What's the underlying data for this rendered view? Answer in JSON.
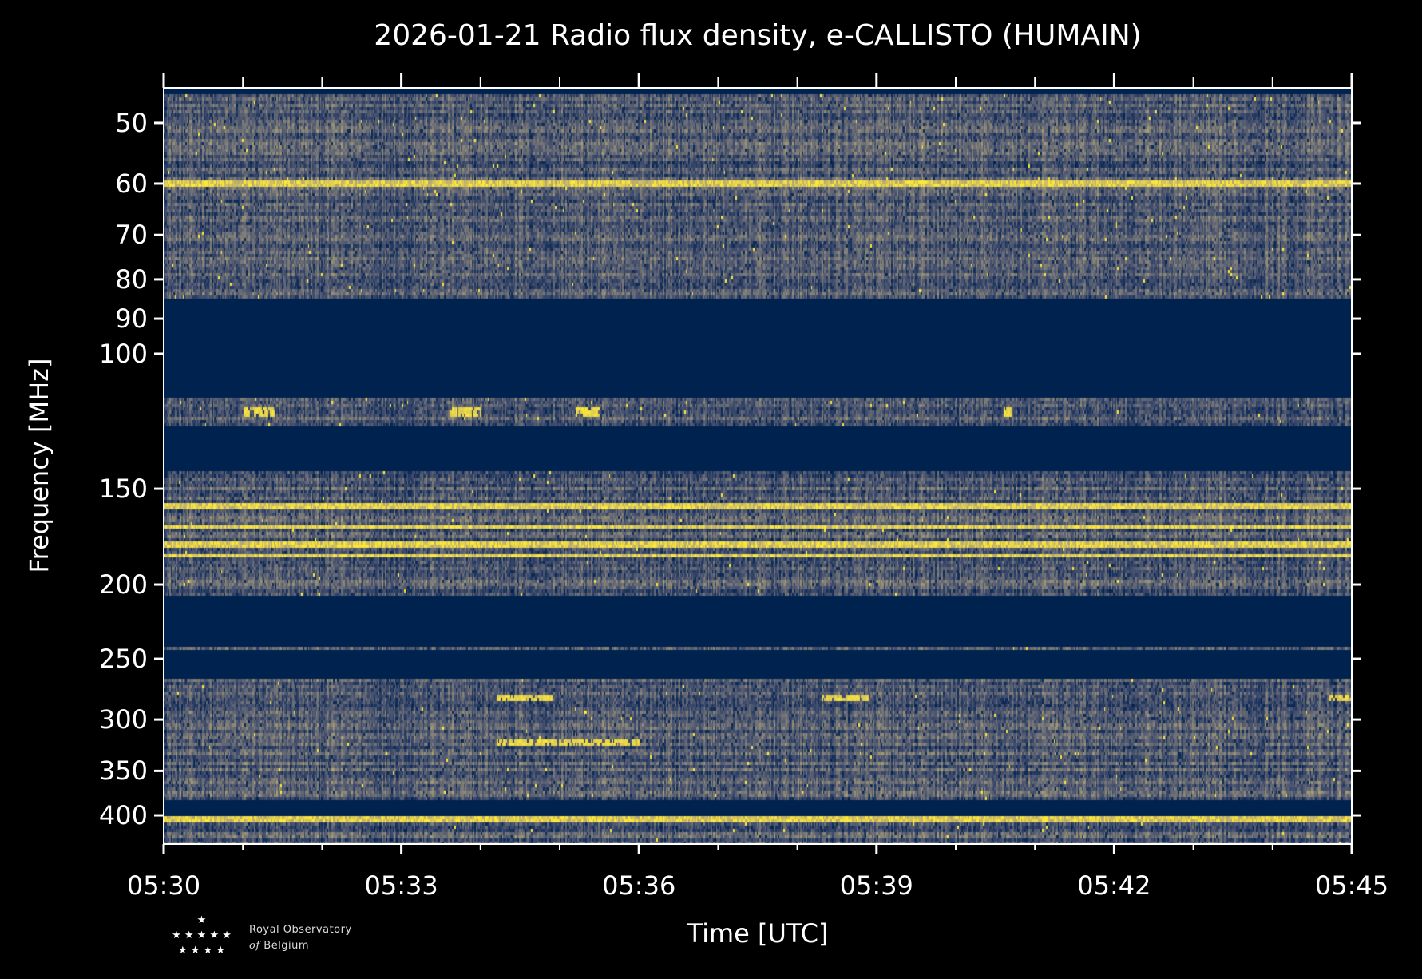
{
  "chart_data": {
    "type": "heatmap",
    "title": "2026-01-21 Radio flux density, e-CALLISTO (HUMAIN)",
    "xlabel": "Time [UTC]",
    "ylabel": "Frequency [MHz]",
    "x_range": [
      "05:30",
      "05:45"
    ],
    "x_ticks": [
      "05:30",
      "05:33",
      "05:36",
      "05:39",
      "05:42",
      "05:45"
    ],
    "x_minor_tick_minutes": 1,
    "y_scale": "log",
    "y_inverted": true,
    "y_range_mhz": [
      45,
      436
    ],
    "y_ticks": [
      50,
      60,
      70,
      80,
      90,
      100,
      150,
      200,
      250,
      300,
      350,
      400
    ],
    "colormap": "cividis",
    "colormap_stops": [
      "#00224e",
      "#3d4a6d",
      "#7c7b78",
      "#bcaf6f",
      "#fee838"
    ],
    "masked_bands_mhz": [
      [
        85,
        114
      ],
      [
        124,
        142
      ],
      [
        207,
        241
      ],
      [
        244,
        265
      ],
      [
        383,
        400
      ]
    ],
    "bright_lines_mhz": [
      60,
      158,
      168,
      176,
      178,
      183,
      405
    ],
    "bursts": [
      {
        "freq_mhz": [
          117,
          121
        ],
        "start": "05:31.0",
        "end": "05:31.4"
      },
      {
        "freq_mhz": [
          117,
          121
        ],
        "start": "05:33.6",
        "end": "05:34.0"
      },
      {
        "freq_mhz": [
          117,
          121
        ],
        "start": "05:35.2",
        "end": "05:35.5"
      },
      {
        "freq_mhz": [
          117,
          121
        ],
        "start": "05:40.6",
        "end": "05:40.7"
      },
      {
        "freq_mhz": [
          278,
          284
        ],
        "start": "05:34.2",
        "end": "05:34.9"
      },
      {
        "freq_mhz": [
          278,
          284
        ],
        "start": "05:38.3",
        "end": "05:38.9"
      },
      {
        "freq_mhz": [
          278,
          284
        ],
        "start": "05:44.7",
        "end": "05:45.0"
      },
      {
        "freq_mhz": [
          318,
          324
        ],
        "start": "05:34.2",
        "end": "05:36.0"
      }
    ]
  },
  "logo": {
    "line1": "Royal Observatory",
    "line2_of": "of",
    "line2": "Belgium",
    "stars": "★"
  }
}
